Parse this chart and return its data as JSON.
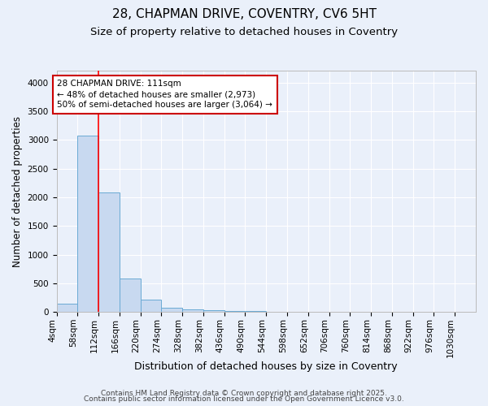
{
  "title1": "28, CHAPMAN DRIVE, COVENTRY, CV6 5HT",
  "title2": "Size of property relative to detached houses in Coventry",
  "xlabel": "Distribution of detached houses by size in Coventry",
  "ylabel": "Number of detached properties",
  "footer1": "Contains HM Land Registry data © Crown copyright and database right 2025.",
  "footer2": "Contains public sector information licensed under the Open Government Licence v3.0.",
  "bin_edges": [
    4,
    58,
    112,
    166,
    220,
    274,
    328,
    382,
    436,
    490,
    544,
    598,
    652,
    706,
    760,
    814,
    868,
    922,
    976,
    1030,
    1084
  ],
  "bar_heights": [
    150,
    3080,
    2080,
    580,
    220,
    70,
    50,
    30,
    15,
    10,
    8,
    5,
    4,
    3,
    3,
    2,
    2,
    1,
    1,
    1
  ],
  "bar_color": "#c8d9f0",
  "bar_edgecolor": "#6aaad4",
  "bar_linewidth": 0.7,
  "red_line_x": 111,
  "annotation_text": "28 CHAPMAN DRIVE: 111sqm\n← 48% of detached houses are smaller (2,973)\n50% of semi-detached houses are larger (3,064) →",
  "annotation_box_color": "#ffffff",
  "annotation_box_edgecolor": "#cc0000",
  "ylim": [
    0,
    4200
  ],
  "yticks": [
    0,
    500,
    1000,
    1500,
    2000,
    2500,
    3000,
    3500,
    4000
  ],
  "bg_color": "#eaf0fa",
  "plot_bg_color": "#eaf0fa",
  "grid_color": "#ffffff",
  "title1_fontsize": 11,
  "title2_fontsize": 9.5,
  "xlabel_fontsize": 9,
  "ylabel_fontsize": 8.5,
  "tick_fontsize": 7.5,
  "footer_fontsize": 6.5
}
